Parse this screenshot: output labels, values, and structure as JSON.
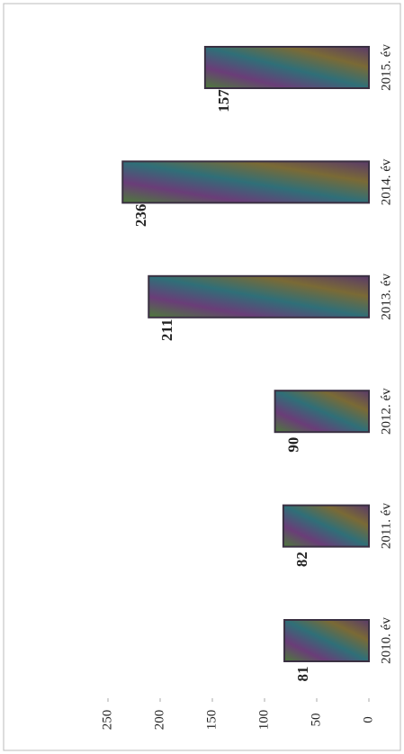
{
  "chart_data": {
    "type": "bar",
    "categories": [
      "2010. év",
      "2011. év",
      "2012. év",
      "2013. év",
      "2014. év",
      "2015. év"
    ],
    "values": [
      81,
      82,
      90,
      211,
      236,
      157
    ],
    "color": "#3a3042",
    "ylim": [
      0,
      250
    ],
    "yticks": [
      0,
      50,
      100,
      150,
      200,
      250
    ]
  }
}
